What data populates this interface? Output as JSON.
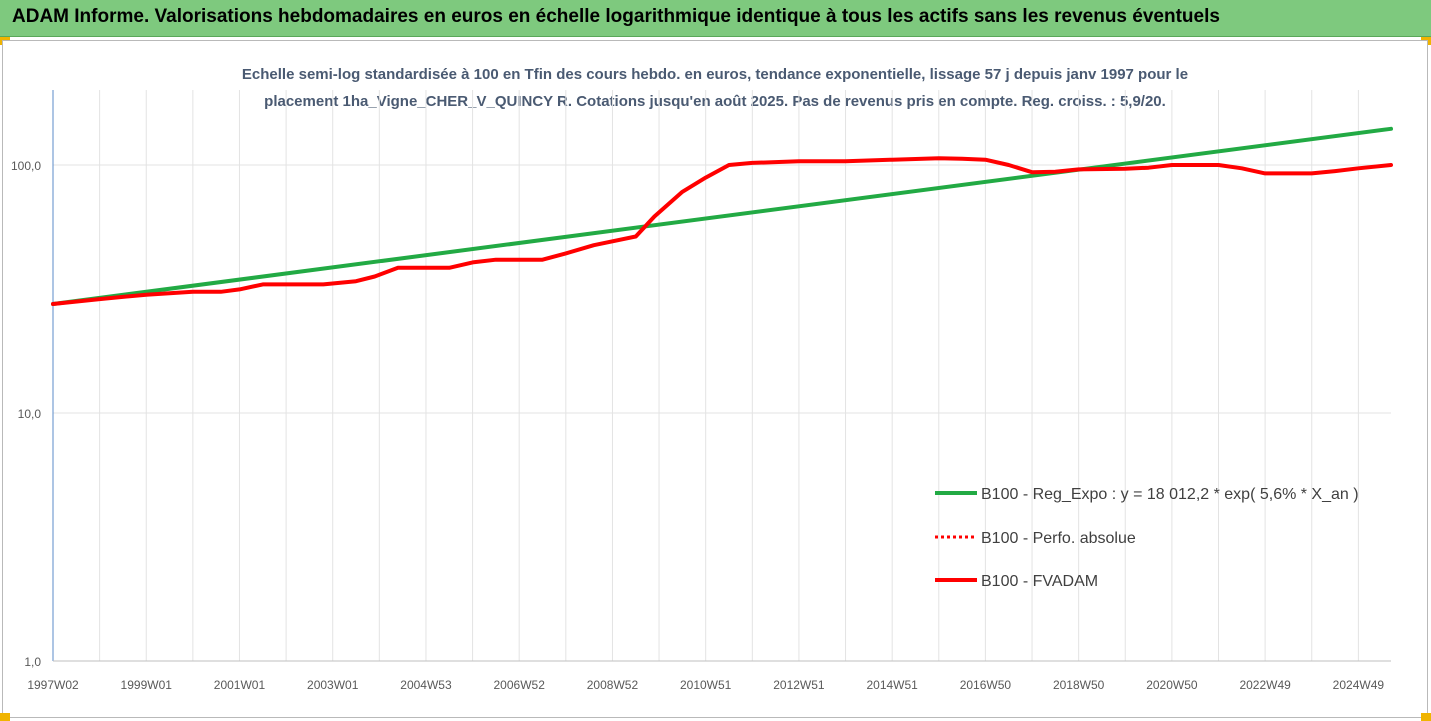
{
  "header": {
    "title": "ADAM Informe. Valorisations hebdomadaires en euros en échelle logarithmique identique à tous les actifs sans les revenus éventuels"
  },
  "chart_data": {
    "type": "line",
    "title_line1": "Echelle semi-log standardisée à 100 en Tfin des cours hebdo. en euros, tendance exponentielle, lissage 57 j depuis janv 1997 pour le",
    "title_line2": "placement 1ha_Vigne_CHER_V_QUINCY R. Cotations jusqu'en août 2025. Pas de revenus pris en compte. Reg. croiss. : 5,9/20.",
    "y_scale": "log",
    "ylim": [
      1,
      200
    ],
    "y_ticks": [
      {
        "value": 1,
        "label": "1,0"
      },
      {
        "value": 10,
        "label": "10,0"
      },
      {
        "value": 100,
        "label": "100,0"
      }
    ],
    "x_range": [
      1997.0,
      2025.7
    ],
    "x_ticks": [
      {
        "x": 1997.0,
        "label": "1997W02"
      },
      {
        "x": 1999.0,
        "label": "1999W01"
      },
      {
        "x": 2001.0,
        "label": "2001W01"
      },
      {
        "x": 2003.0,
        "label": "2003W01"
      },
      {
        "x": 2005.0,
        "label": "2004W53"
      },
      {
        "x": 2007.0,
        "label": "2006W52"
      },
      {
        "x": 2009.0,
        "label": "2008W52"
      },
      {
        "x": 2011.0,
        "label": "2010W51"
      },
      {
        "x": 2013.0,
        "label": "2012W51"
      },
      {
        "x": 2015.0,
        "label": "2014W51"
      },
      {
        "x": 2017.0,
        "label": "2016W50"
      },
      {
        "x": 2019.0,
        "label": "2018W50"
      },
      {
        "x": 2021.0,
        "label": "2020W50"
      },
      {
        "x": 2023.0,
        "label": "2022W49"
      },
      {
        "x": 2025.0,
        "label": "2024W49"
      }
    ],
    "grid": "vertical",
    "legend_position": "bottom-right",
    "series": [
      {
        "name": "B100 - Reg_Expo : y = 18 012,2 * exp( 5,6% *  X_an )",
        "color": "#22aa44",
        "style": "solid",
        "points": [
          [
            1997.0,
            27.5
          ],
          [
            2025.7,
            140.0
          ]
        ]
      },
      {
        "name": "B100 - Perfo. absolue",
        "color": "#ff0000",
        "style": "dotted",
        "points": []
      },
      {
        "name": "B100 - FVADAM",
        "color": "#ff0000",
        "style": "solid",
        "points": [
          [
            1997.0,
            27.5
          ],
          [
            1998.0,
            28.8
          ],
          [
            1999.0,
            30.0
          ],
          [
            2000.0,
            30.8
          ],
          [
            2000.6,
            30.8
          ],
          [
            2001.0,
            31.5
          ],
          [
            2001.5,
            33.0
          ],
          [
            2002.3,
            33.0
          ],
          [
            2002.8,
            33.0
          ],
          [
            2003.5,
            34.0
          ],
          [
            2003.9,
            35.5
          ],
          [
            2004.4,
            38.5
          ],
          [
            2005.0,
            38.5
          ],
          [
            2005.5,
            38.5
          ],
          [
            2006.0,
            40.5
          ],
          [
            2006.5,
            41.5
          ],
          [
            2007.5,
            41.5
          ],
          [
            2008.0,
            44.0
          ],
          [
            2008.6,
            47.5
          ],
          [
            2009.5,
            51.5
          ],
          [
            2009.9,
            62.0
          ],
          [
            2010.5,
            78.0
          ],
          [
            2011.0,
            89.0
          ],
          [
            2011.5,
            100.0
          ],
          [
            2012.0,
            102.0
          ],
          [
            2013.0,
            103.5
          ],
          [
            2014.0,
            103.5
          ],
          [
            2015.0,
            105.0
          ],
          [
            2016.0,
            106.5
          ],
          [
            2016.5,
            106.0
          ],
          [
            2017.0,
            105.0
          ],
          [
            2017.5,
            100.0
          ],
          [
            2018.0,
            93.5
          ],
          [
            2018.5,
            94.0
          ],
          [
            2019.0,
            96.0
          ],
          [
            2020.0,
            96.5
          ],
          [
            2020.5,
            97.5
          ],
          [
            2021.0,
            100.0
          ],
          [
            2022.0,
            100.0
          ],
          [
            2022.5,
            97.0
          ],
          [
            2023.0,
            92.5
          ],
          [
            2024.0,
            92.5
          ],
          [
            2024.5,
            94.5
          ],
          [
            2025.0,
            97.0
          ],
          [
            2025.7,
            100.0
          ]
        ]
      }
    ]
  }
}
